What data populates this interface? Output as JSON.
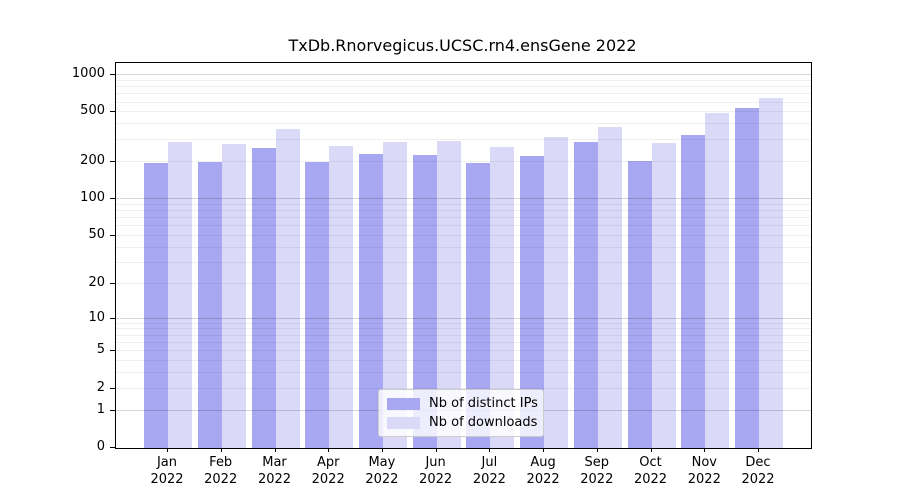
{
  "chart_data": {
    "type": "bar",
    "title": "TxDb.Rnorvegicus.UCSC.rn4.ensGene 2022",
    "categories": [
      "Jan",
      "Feb",
      "Mar",
      "Apr",
      "May",
      "Jun",
      "Jul",
      "Aug",
      "Sep",
      "Oct",
      "Nov",
      "Dec"
    ],
    "x_tick_second_line": "2022",
    "series": [
      {
        "name": "Nb of distinct IPs",
        "color": "#a7a7f2",
        "values": [
          197,
          200,
          257,
          198,
          231,
          228,
          196,
          221,
          288,
          203,
          330,
          543
        ]
      },
      {
        "name": "Nb of downloads",
        "color": "#dadaf8",
        "values": [
          291,
          276,
          371,
          268,
          288,
          293,
          264,
          318,
          385,
          285,
          492,
          651
        ]
      }
    ],
    "yticks": [
      0,
      1,
      2,
      5,
      10,
      20,
      50,
      100,
      200,
      500,
      1000
    ],
    "scale": "log1p",
    "ylim": [
      0,
      1250
    ],
    "xlabel": "",
    "ylabel": "",
    "grid": true,
    "legend_position": "bottom-center",
    "axis_color": "#000000",
    "background_color": "#ffffff"
  }
}
